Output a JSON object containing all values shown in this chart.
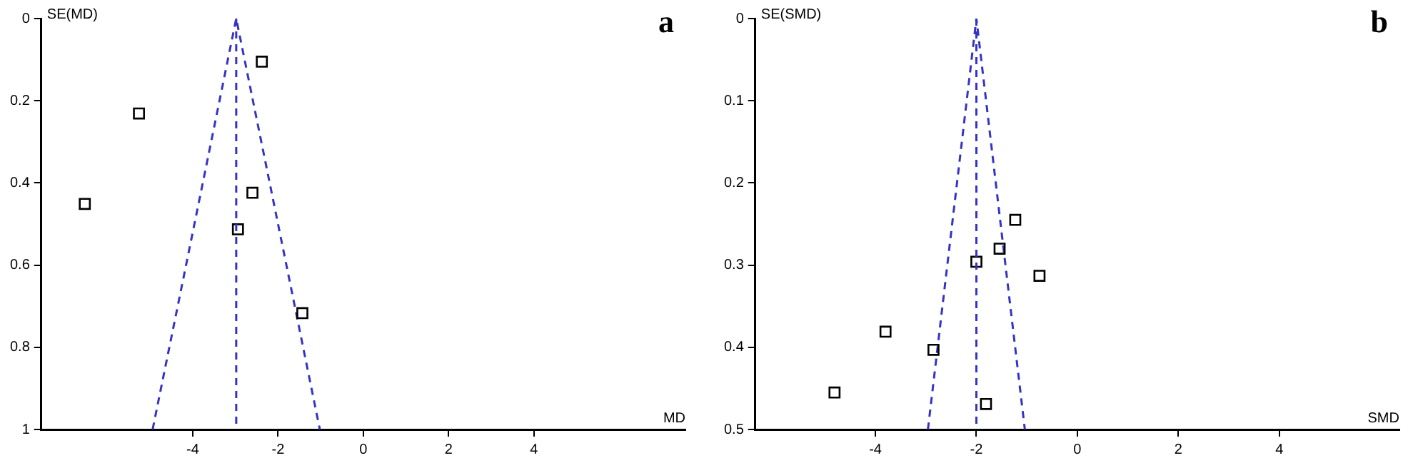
{
  "chart_data": [
    {
      "type": "scatter",
      "title": "a",
      "xlabel": "MD",
      "ylabel": "SE(MD)",
      "xlim": [
        -7.55,
        7.55
      ],
      "xticks": [
        -4,
        -2,
        0,
        2,
        4
      ],
      "ylim": [
        1,
        0
      ],
      "yticks": [
        0,
        0.2,
        0.4,
        0.6,
        0.8,
        1
      ],
      "grid": false,
      "legend": false,
      "series": [
        {
          "type": "scatter",
          "color": "#000000",
          "marker": "square",
          "x": [
            -2.38,
            -5.26,
            -6.53,
            -2.6,
            -2.94,
            -1.43
          ],
          "values": [
            0.105,
            0.231,
            0.451,
            0.424,
            0.513,
            0.717
          ]
        },
        {
          "type": "line",
          "color": "#3333cc",
          "marker": "none",
          "line_style": "dashed",
          "x": [
            -4.94,
            -2.98,
            -1.02
          ],
          "values": [
            1,
            0,
            1
          ]
        }
      ],
      "ref_lines": [
        {
          "axis": "x",
          "value": -2.98,
          "color": "#3333cc",
          "line_style": "dashed"
        }
      ]
    },
    {
      "type": "scatter",
      "title": "b",
      "xlabel": "SMD",
      "ylabel": "SE(SMD)",
      "xlim": [
        -6.38,
        6.38
      ],
      "xticks": [
        -4,
        -2,
        0,
        2,
        4
      ],
      "ylim": [
        0.5,
        0
      ],
      "yticks": [
        0,
        0.1,
        0.2,
        0.3,
        0.4,
        0.5
      ],
      "grid": false,
      "legend": false,
      "series": [
        {
          "type": "scatter",
          "color": "#000000",
          "marker": "square",
          "x": [
            -1.23,
            -1.54,
            -2.0,
            -0.75,
            -3.8,
            -2.85,
            -4.81,
            -1.81
          ],
          "values": [
            0.245,
            0.28,
            0.296,
            0.313,
            0.381,
            0.403,
            0.455,
            0.469
          ]
        },
        {
          "type": "line",
          "color": "#3333cc",
          "marker": "none",
          "line_style": "dashed",
          "x": [
            -2.96,
            -2.0,
            -1.04
          ],
          "values": [
            0.5,
            0,
            0.5
          ]
        }
      ],
      "ref_lines": [
        {
          "axis": "x",
          "value": -2.0,
          "color": "#3333cc",
          "line_style": "dashed"
        }
      ]
    }
  ]
}
